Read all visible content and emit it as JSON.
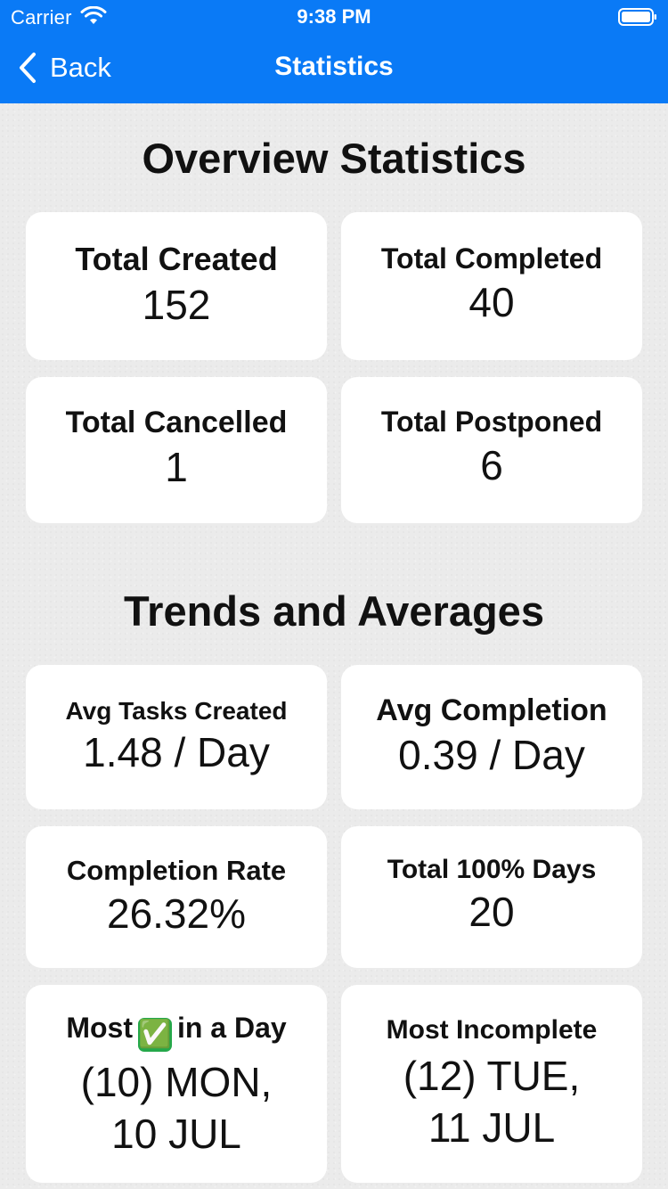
{
  "status_bar": {
    "carrier": "Carrier",
    "time": "9:38 PM"
  },
  "nav": {
    "back_label": "Back",
    "title": "Statistics"
  },
  "overview": {
    "title": "Overview Statistics",
    "cards": [
      {
        "title": "Total Created",
        "value": "152"
      },
      {
        "title": "Total Completed",
        "value": "40"
      },
      {
        "title": "Total Cancelled",
        "value": "1"
      },
      {
        "title": "Total Postponed",
        "value": "6"
      }
    ]
  },
  "trends": {
    "title": "Trends and Averages",
    "cards": [
      {
        "title": "Avg Tasks Created",
        "value": "1.48 / Day"
      },
      {
        "title": "Avg Completion",
        "value": "0.39 / Day"
      },
      {
        "title": "Completion Rate",
        "value": "26.32%"
      },
      {
        "title": "Total 100% Days",
        "value": "20"
      },
      {
        "title_prefix": "Most",
        "title_icon": "✅",
        "title_suffix": "in a Day",
        "value_line1": "(10) MON,",
        "value_line2": "10 JUL"
      },
      {
        "title": "Most Incomplete",
        "value_line1": "(12) TUE,",
        "value_line2": "11 JUL"
      }
    ]
  },
  "colors": {
    "accent": "#0a7af6",
    "background": "#ebebeb",
    "card": "#ffffff"
  }
}
